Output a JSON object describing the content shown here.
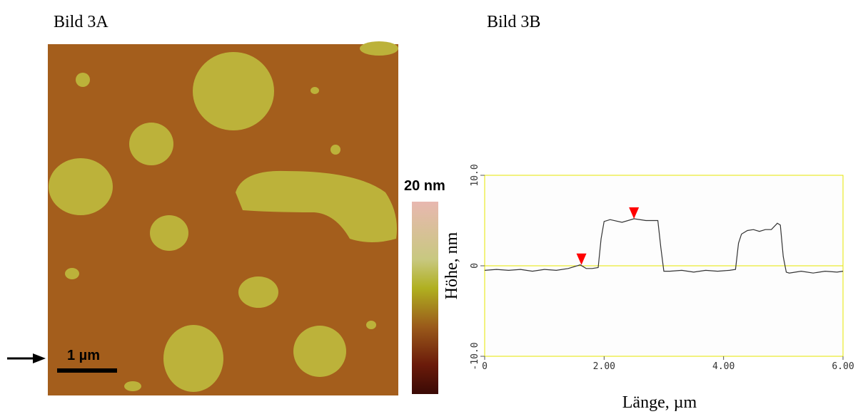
{
  "panel_a": {
    "title": "Bild 3A",
    "scale_bar": "1 µm",
    "colorbar_label": "20 nm"
  },
  "chart_data": {
    "type": "line",
    "title": "Bild 3B",
    "x_label": "Länge, µm",
    "y_label": "Höhe, nm",
    "xlim": [
      0,
      6
    ],
    "ylim": [
      -10,
      10
    ],
    "xticks": [
      0,
      {
        "value": 2,
        "label": "2.00"
      },
      {
        "value": 4,
        "label": "4.00"
      },
      {
        "value": 6,
        "label": "6.00"
      }
    ],
    "yticks": [
      {
        "value": -10,
        "label": "-10.0"
      },
      0,
      {
        "value": 10,
        "label": "10.0"
      }
    ],
    "axis_color": "#e6e600",
    "series": [
      {
        "color": "#333333",
        "x": [
          0,
          0.2,
          0.4,
          0.6,
          0.8,
          1.0,
          1.2,
          1.4,
          1.6,
          1.7,
          1.8,
          1.9,
          1.95,
          2.0,
          2.1,
          2.3,
          2.5,
          2.7,
          2.9,
          2.95,
          3.0,
          3.1,
          3.3,
          3.5,
          3.7,
          3.9,
          4.1,
          4.2,
          4.25,
          4.3,
          4.4,
          4.5,
          4.6,
          4.7,
          4.8,
          4.9,
          4.95,
          5.0,
          5.05,
          5.1,
          5.3,
          5.5,
          5.7,
          5.9,
          6.0
        ],
        "values": [
          -0.5,
          -0.4,
          -0.5,
          -0.4,
          -0.6,
          -0.4,
          -0.5,
          -0.3,
          0.1,
          -0.3,
          -0.3,
          -0.2,
          3.0,
          4.9,
          5.1,
          4.8,
          5.2,
          5.0,
          5.0,
          2.0,
          -0.6,
          -0.6,
          -0.5,
          -0.7,
          -0.5,
          -0.6,
          -0.5,
          -0.4,
          2.5,
          3.5,
          3.9,
          4.0,
          3.8,
          4.0,
          4.0,
          4.7,
          4.5,
          1.0,
          -0.7,
          -0.8,
          -0.6,
          -0.8,
          -0.6,
          -0.7,
          -0.6
        ]
      }
    ],
    "markers": {
      "color": "#ff0000",
      "x": [
        1.62,
        2.5
      ],
      "y": [
        0.1,
        5.2
      ]
    }
  }
}
